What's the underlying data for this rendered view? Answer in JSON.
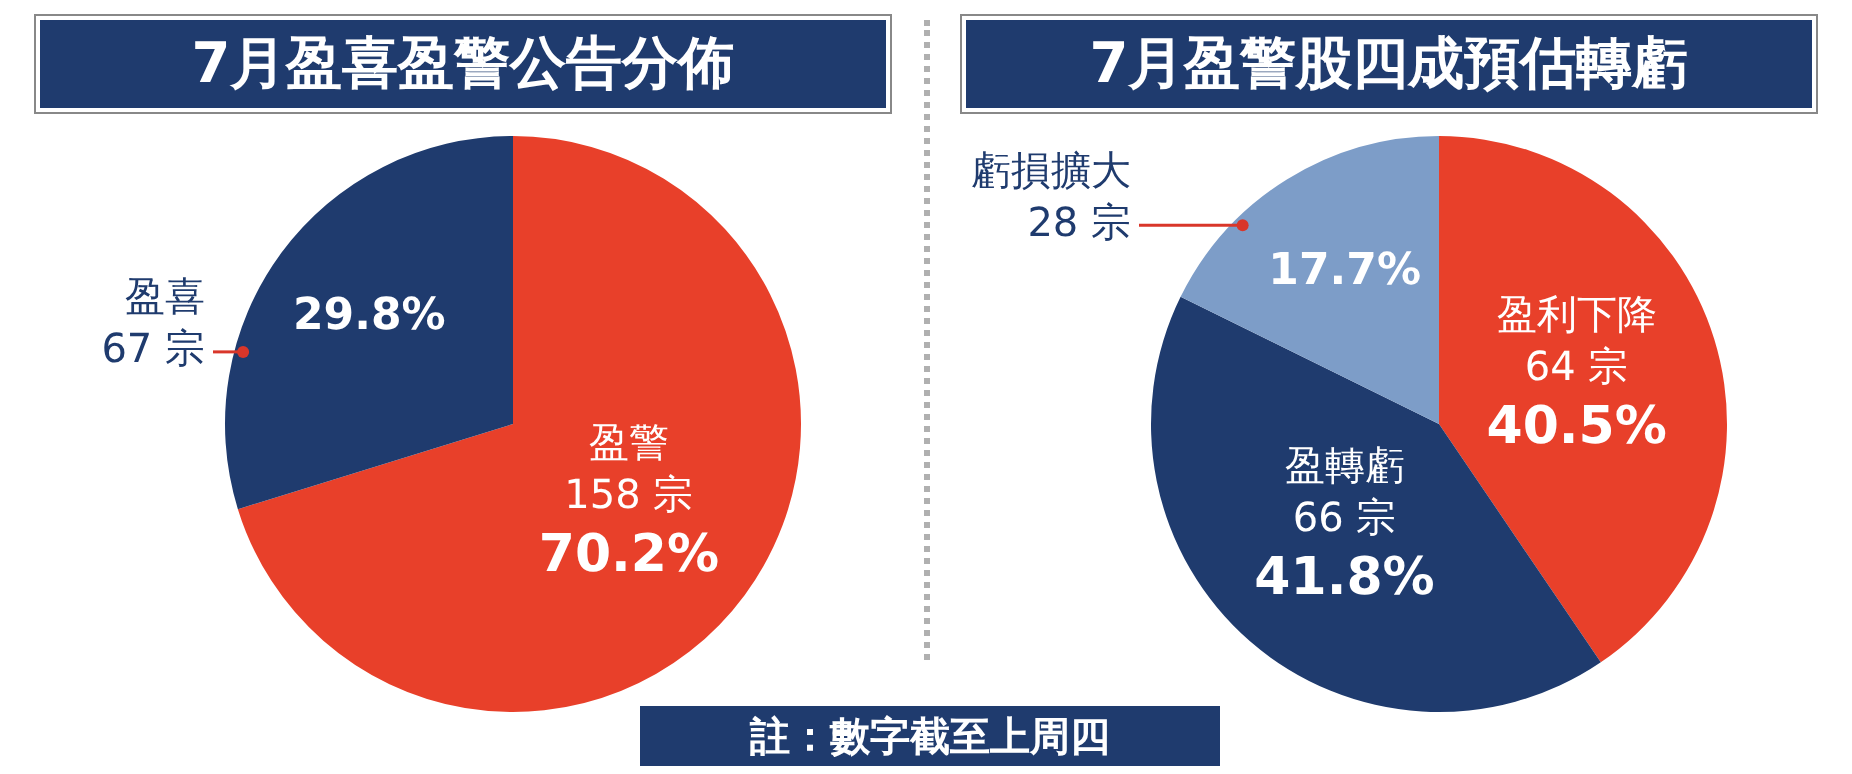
{
  "chart_data": [
    {
      "type": "pie",
      "title": "7月盈喜盈警公告分佈",
      "categories": [
        "盈警",
        "盈喜"
      ],
      "values": [
        158,
        67
      ],
      "colors": [
        "#e8402a",
        "#1f3b6e"
      ],
      "value_labels": [
        "158 宗",
        "67 宗"
      ],
      "annotations": [
        {
          "text": "70.2%",
          "x": "盈警"
        },
        {
          "text": "29.8%",
          "x": "盈喜"
        }
      ]
    },
    {
      "type": "pie",
      "title": "7月盈警股四成預估轉虧",
      "categories": [
        "盈利下降",
        "盈轉虧",
        "虧損擴大"
      ],
      "values": [
        64,
        66,
        28
      ],
      "colors": [
        "#e8402a",
        "#1f3b6e",
        "#7d9dc8"
      ],
      "value_labels": [
        "64 宗",
        "66 宗",
        "28 宗"
      ],
      "annotations": [
        {
          "text": "40.5%",
          "x": "盈利下降"
        },
        {
          "text": "41.8%",
          "x": "盈轉虧"
        },
        {
          "text": "17.7%",
          "x": "虧損擴大"
        },
        "註：數字截至上周四"
      ]
    }
  ]
}
